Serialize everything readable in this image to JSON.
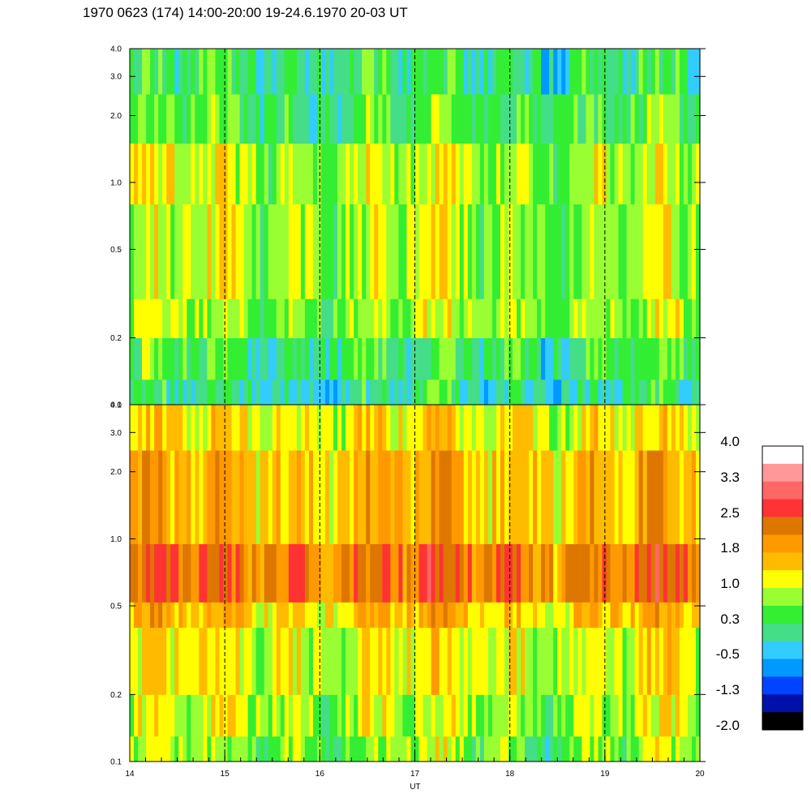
{
  "title": "1970 0623 (174) 14:00-20:00 19-24.6.1970  20-03 UT",
  "chart_data": {
    "type": "heatmap",
    "title": "1970 0623 (174) 14:00-20:00 19-24.6.1970  20-03 UT",
    "xlabel": "UT",
    "ylabel": "",
    "x_range": [
      14,
      20
    ],
    "x_ticks": [
      "14",
      "15",
      "16",
      "17",
      "18",
      "19",
      "20"
    ],
    "hour_dividers": [
      15,
      16,
      17,
      18,
      19
    ],
    "y_scale": "log",
    "y_range": [
      0.1,
      4.0
    ],
    "y_ticks": [
      {
        "value": 0.1,
        "label": "0.1"
      },
      {
        "value": 0.2,
        "label": "0.2"
      },
      {
        "value": 0.5,
        "label": "0.5"
      },
      {
        "value": 1.0,
        "label": "1.0"
      },
      {
        "value": 2.0,
        "label": "2.0"
      },
      {
        "value": 3.0,
        "label": "3.0"
      },
      {
        "value": 4.0,
        "label": "4.0"
      }
    ],
    "panels": [
      {
        "name": "upper",
        "bands": [
          {
            "ymin": 0.1,
            "ymax": 0.13,
            "value": 0.0
          },
          {
            "ymin": 0.13,
            "ymax": 0.2,
            "value": 0.3
          },
          {
            "ymin": 0.2,
            "ymax": 0.3,
            "value": 0.8
          },
          {
            "ymin": 0.3,
            "ymax": 0.8,
            "value": 0.8
          },
          {
            "ymin": 0.8,
            "ymax": 1.5,
            "value": 0.9
          },
          {
            "ymin": 1.5,
            "ymax": 2.5,
            "value": 0.4
          },
          {
            "ymin": 2.5,
            "ymax": 4.0,
            "value": 0.2
          }
        ]
      },
      {
        "name": "lower",
        "bands": [
          {
            "ymin": 0.1,
            "ymax": 0.13,
            "value": 0.7
          },
          {
            "ymin": 0.13,
            "ymax": 0.2,
            "value": 0.9
          },
          {
            "ymin": 0.2,
            "ymax": 0.4,
            "value": 1.1
          },
          {
            "ymin": 0.4,
            "ymax": 0.52,
            "value": 1.5
          },
          {
            "ymin": 0.52,
            "ymax": 0.95,
            "value": 2.2
          },
          {
            "ymin": 0.95,
            "ymax": 2.5,
            "value": 1.6
          },
          {
            "ymin": 2.5,
            "ymax": 4.0,
            "value": 1.2
          }
        ]
      }
    ],
    "colorscale": {
      "labels": [
        "4.0",
        "3.3",
        "2.5",
        "1.8",
        "1.0",
        "0.3",
        "-0.5",
        "-1.3",
        "-2.0"
      ],
      "min": -2.0,
      "max": 4.0,
      "colors_top_to_bottom": [
        "#ffffff",
        "#ff9999",
        "#ff6666",
        "#ff3333",
        "#dd7700",
        "#ff9900",
        "#ffbb00",
        "#ffff00",
        "#99ff33",
        "#33ee33",
        "#44dd88",
        "#33ccff",
        "#0099ff",
        "#0044ff",
        "#0011aa",
        "#000000"
      ]
    }
  }
}
